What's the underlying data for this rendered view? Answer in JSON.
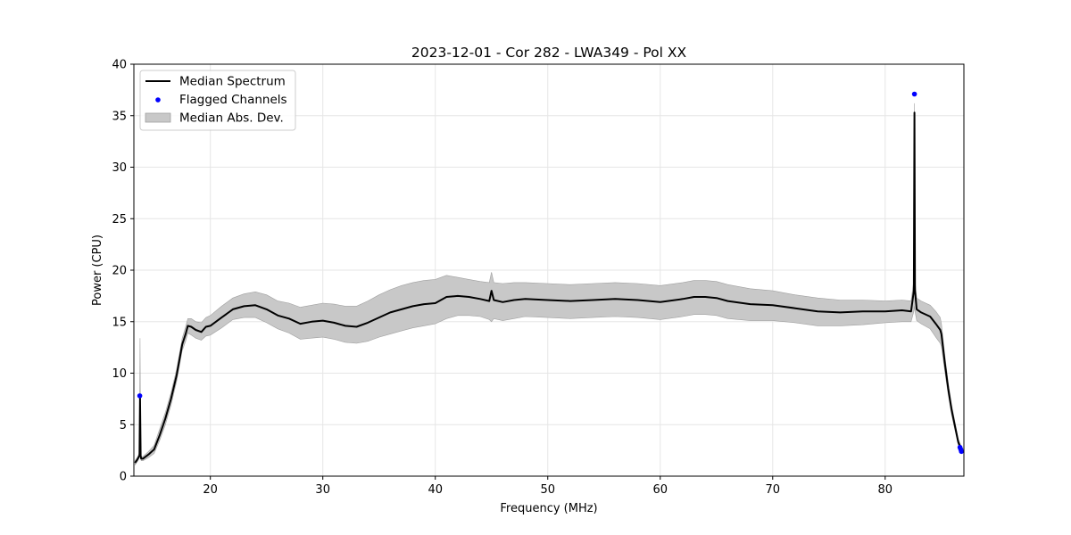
{
  "chart_data": {
    "type": "line",
    "title": "2023-12-01 - Cor 282 - LWA349 - Pol XX",
    "xlabel": "Frequency (MHz)",
    "ylabel": "Power (CPU)",
    "xlim": [
      13.2,
      87.0
    ],
    "ylim": [
      0,
      40
    ],
    "xticks": [
      20,
      30,
      40,
      50,
      60,
      70,
      80
    ],
    "yticks": [
      0,
      5,
      10,
      15,
      20,
      25,
      30,
      35,
      40
    ],
    "grid": true,
    "legend_position": "top-left",
    "legend": [
      "Median Spectrum",
      "Flagged Channels",
      "Median Abs. Dev."
    ],
    "colors": {
      "line": "#000000",
      "flagged": "#0000ff",
      "band": "#c8c8c8",
      "band_edge": "#a0a0a0"
    },
    "series": [
      {
        "name": "Median Spectrum",
        "x": [
          13.3,
          13.5,
          13.7,
          13.75,
          13.8,
          13.85,
          14.0,
          14.5,
          15.0,
          15.5,
          16.0,
          16.5,
          17.0,
          17.5,
          17.8,
          18.0,
          18.3,
          18.7,
          19.2,
          19.6,
          20.0,
          21.0,
          22.0,
          23.0,
          24.0,
          25.0,
          26.0,
          27.0,
          28.0,
          29.0,
          30.0,
          31.0,
          32.0,
          33.0,
          34.0,
          35.0,
          36.0,
          37.0,
          38.0,
          39.0,
          40.0,
          41.0,
          42.0,
          43.0,
          44.0,
          44.8,
          45.0,
          45.2,
          46.0,
          47.0,
          48.0,
          50.0,
          52.0,
          54.0,
          56.0,
          58.0,
          60.0,
          62.0,
          63.0,
          64.0,
          65.0,
          66.0,
          68.0,
          70.0,
          72.0,
          74.0,
          76.0,
          78.0,
          80.0,
          81.5,
          82.3,
          82.55,
          82.6,
          82.65,
          82.8,
          83.2,
          84.0,
          84.5,
          84.9,
          85.0,
          85.3,
          85.6,
          85.9,
          86.2,
          86.5,
          86.8
        ],
        "values": [
          1.3,
          1.6,
          2.0,
          7.6,
          2.0,
          1.7,
          1.7,
          2.1,
          2.6,
          4.0,
          5.6,
          7.5,
          9.8,
          12.8,
          13.8,
          14.6,
          14.5,
          14.2,
          14.0,
          14.5,
          14.6,
          15.4,
          16.2,
          16.5,
          16.6,
          16.2,
          15.6,
          15.3,
          14.8,
          15.0,
          15.1,
          14.9,
          14.6,
          14.5,
          14.9,
          15.4,
          15.9,
          16.2,
          16.5,
          16.7,
          16.8,
          17.4,
          17.5,
          17.4,
          17.2,
          17.0,
          18.0,
          17.1,
          16.9,
          17.1,
          17.2,
          17.1,
          17.0,
          17.1,
          17.2,
          17.1,
          16.9,
          17.2,
          17.4,
          17.4,
          17.3,
          17.0,
          16.7,
          16.6,
          16.3,
          16.0,
          15.9,
          16.0,
          16.0,
          16.1,
          16.0,
          18.0,
          35.3,
          18.0,
          16.2,
          15.9,
          15.5,
          14.8,
          14.2,
          13.8,
          11.0,
          8.5,
          6.5,
          4.9,
          3.3,
          2.5
        ]
      }
    ],
    "band": {
      "name": "Median Abs. Dev.",
      "x": [
        13.3,
        13.5,
        13.7,
        13.75,
        13.8,
        13.85,
        14.0,
        14.5,
        15.0,
        15.5,
        16.0,
        16.5,
        17.0,
        17.5,
        17.8,
        18.0,
        18.3,
        18.7,
        19.2,
        19.6,
        20.0,
        21.0,
        22.0,
        23.0,
        24.0,
        25.0,
        26.0,
        27.0,
        28.0,
        29.0,
        30.0,
        31.0,
        32.0,
        33.0,
        34.0,
        35.0,
        36.0,
        37.0,
        38.0,
        39.0,
        40.0,
        41.0,
        42.0,
        43.0,
        44.0,
        44.8,
        45.0,
        45.2,
        46.0,
        47.0,
        48.0,
        50.0,
        52.0,
        54.0,
        56.0,
        58.0,
        60.0,
        62.0,
        63.0,
        64.0,
        65.0,
        66.0,
        68.0,
        70.0,
        72.0,
        74.0,
        76.0,
        78.0,
        80.0,
        81.5,
        82.3,
        82.55,
        82.6,
        82.65,
        82.8,
        83.2,
        84.0,
        84.5,
        84.9,
        85.0,
        85.3,
        85.6,
        85.9,
        86.2,
        86.5,
        86.8
      ],
      "upper": [
        1.5,
        1.8,
        2.3,
        13.4,
        2.4,
        1.9,
        1.9,
        2.4,
        3.0,
        4.6,
        6.2,
        8.1,
        10.4,
        13.4,
        14.5,
        15.3,
        15.3,
        15.0,
        14.9,
        15.4,
        15.6,
        16.5,
        17.3,
        17.7,
        17.9,
        17.6,
        17.0,
        16.8,
        16.4,
        16.6,
        16.8,
        16.7,
        16.5,
        16.5,
        17.0,
        17.6,
        18.1,
        18.5,
        18.8,
        19.0,
        19.1,
        19.5,
        19.3,
        19.1,
        18.9,
        18.8,
        19.8,
        18.8,
        18.7,
        18.8,
        18.8,
        18.7,
        18.6,
        18.7,
        18.8,
        18.7,
        18.5,
        18.8,
        19.0,
        19.0,
        18.9,
        18.6,
        18.2,
        18.0,
        17.6,
        17.3,
        17.1,
        17.1,
        17.0,
        17.1,
        17.0,
        19.0,
        36.2,
        19.0,
        17.3,
        17.0,
        16.6,
        16.0,
        15.4,
        14.8,
        11.8,
        9.1,
        7.0,
        5.3,
        3.6,
        2.8
      ],
      "lower": [
        1.1,
        1.4,
        1.8,
        2.5,
        1.8,
        1.5,
        1.5,
        1.8,
        2.2,
        3.5,
        5.0,
        6.9,
        9.2,
        12.2,
        13.1,
        13.9,
        13.7,
        13.4,
        13.2,
        13.6,
        13.7,
        14.4,
        15.2,
        15.4,
        15.4,
        14.9,
        14.3,
        13.9,
        13.3,
        13.4,
        13.5,
        13.3,
        13.0,
        12.9,
        13.1,
        13.5,
        13.8,
        14.1,
        14.4,
        14.6,
        14.8,
        15.3,
        15.6,
        15.6,
        15.5,
        15.2,
        15.0,
        15.3,
        15.1,
        15.3,
        15.5,
        15.4,
        15.3,
        15.4,
        15.5,
        15.4,
        15.2,
        15.5,
        15.7,
        15.7,
        15.6,
        15.3,
        15.1,
        15.1,
        14.9,
        14.6,
        14.6,
        14.7,
        14.9,
        15.0,
        15.0,
        16.0,
        16.5,
        16.0,
        15.1,
        14.8,
        14.3,
        13.5,
        12.9,
        12.6,
        10.2,
        7.9,
        6.0,
        4.5,
        3.0,
        2.2
      ]
    },
    "flagged": {
      "name": "Flagged Channels",
      "x": [
        13.72,
        82.6,
        86.65,
        86.72,
        86.78
      ],
      "values": [
        7.8,
        37.1,
        2.8,
        2.6,
        2.4
      ]
    }
  }
}
